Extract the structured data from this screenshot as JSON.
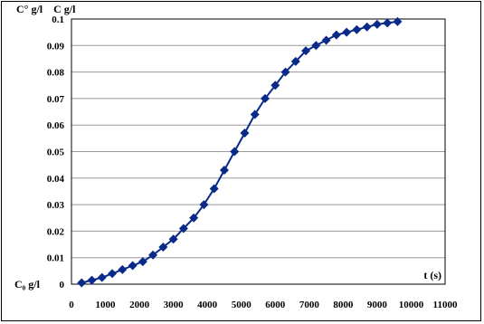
{
  "chart_data": {
    "type": "line",
    "title": "",
    "xlabel": "t (s)",
    "ylabel": "",
    "xlim": [
      0,
      11000
    ],
    "ylim": [
      0,
      0.1
    ],
    "x_ticks": [
      "0",
      "1000",
      "2000",
      "3000",
      "4000",
      "5000",
      "6000",
      "7000",
      "8000",
      "9000",
      "10000",
      "11000"
    ],
    "y_ticks": [
      "0",
      "0.01",
      "0.02",
      "0.03",
      "0.04",
      "0.05",
      "0.06",
      "0.07",
      "0.08",
      "0.09",
      "0.1"
    ],
    "grid": "horizontal",
    "line_color": "#0a2a8a",
    "marker": "diamond",
    "annotations": {
      "top_left": "C° g/l    C g/l",
      "bottom_left": "C₀ g/l"
    },
    "series": [
      {
        "x": [
          300,
          600,
          900,
          1200,
          1500,
          1800,
          2100,
          2400,
          2700,
          3000,
          3300,
          3600,
          3900,
          4200,
          4500,
          4800,
          5100,
          5400,
          5700,
          6000,
          6300,
          6600,
          6900,
          7200,
          7500,
          7800,
          8100,
          8400,
          8700,
          9000,
          9300,
          9600
        ],
        "y": [
          0.0005,
          0.0015,
          0.0025,
          0.004,
          0.0055,
          0.007,
          0.0085,
          0.011,
          0.014,
          0.017,
          0.021,
          0.025,
          0.03,
          0.036,
          0.043,
          0.05,
          0.057,
          0.064,
          0.07,
          0.075,
          0.08,
          0.084,
          0.088,
          0.09,
          0.092,
          0.094,
          0.095,
          0.096,
          0.097,
          0.098,
          0.0985,
          0.099
        ]
      }
    ]
  }
}
